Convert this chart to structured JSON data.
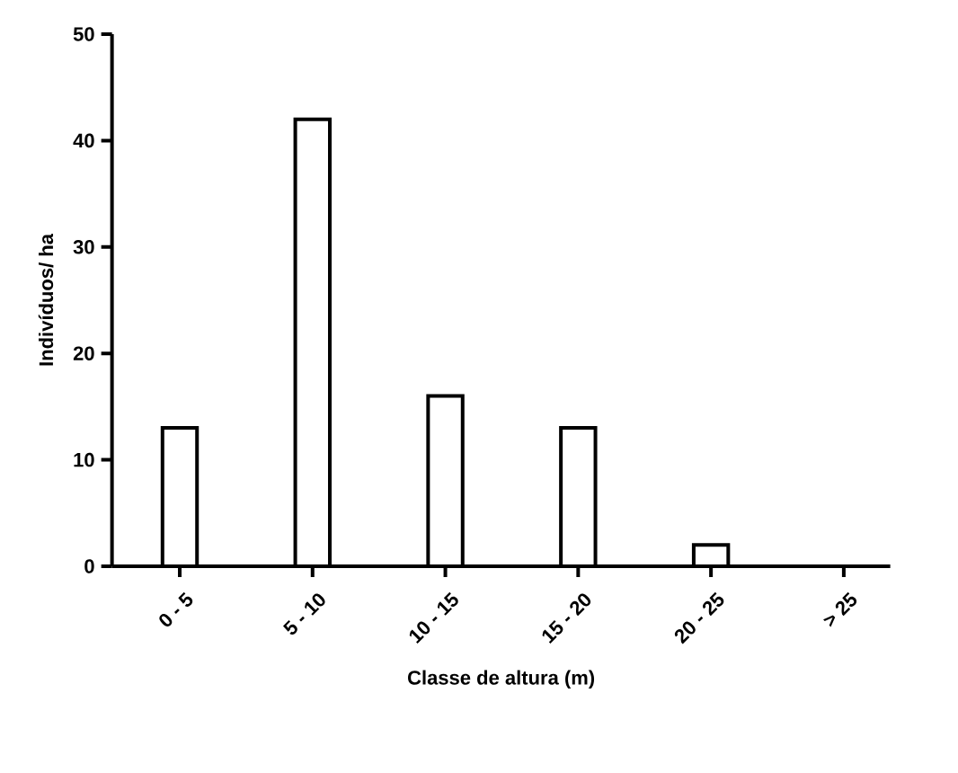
{
  "chart_data": {
    "type": "bar",
    "xlabel": "Classe de altura (m)",
    "ylabel": "Indivíduos/ ha",
    "categories": [
      "0 - 5",
      "5 - 10",
      "10 - 15",
      "15 - 20",
      "20 - 25",
      "> 25"
    ],
    "values": [
      13,
      42,
      16,
      13,
      2,
      0
    ],
    "color": "#ffffff",
    "ylim": [
      0,
      50
    ],
    "yticks": [
      0,
      10,
      20,
      30,
      40,
      50
    ],
    "grid": false
  }
}
